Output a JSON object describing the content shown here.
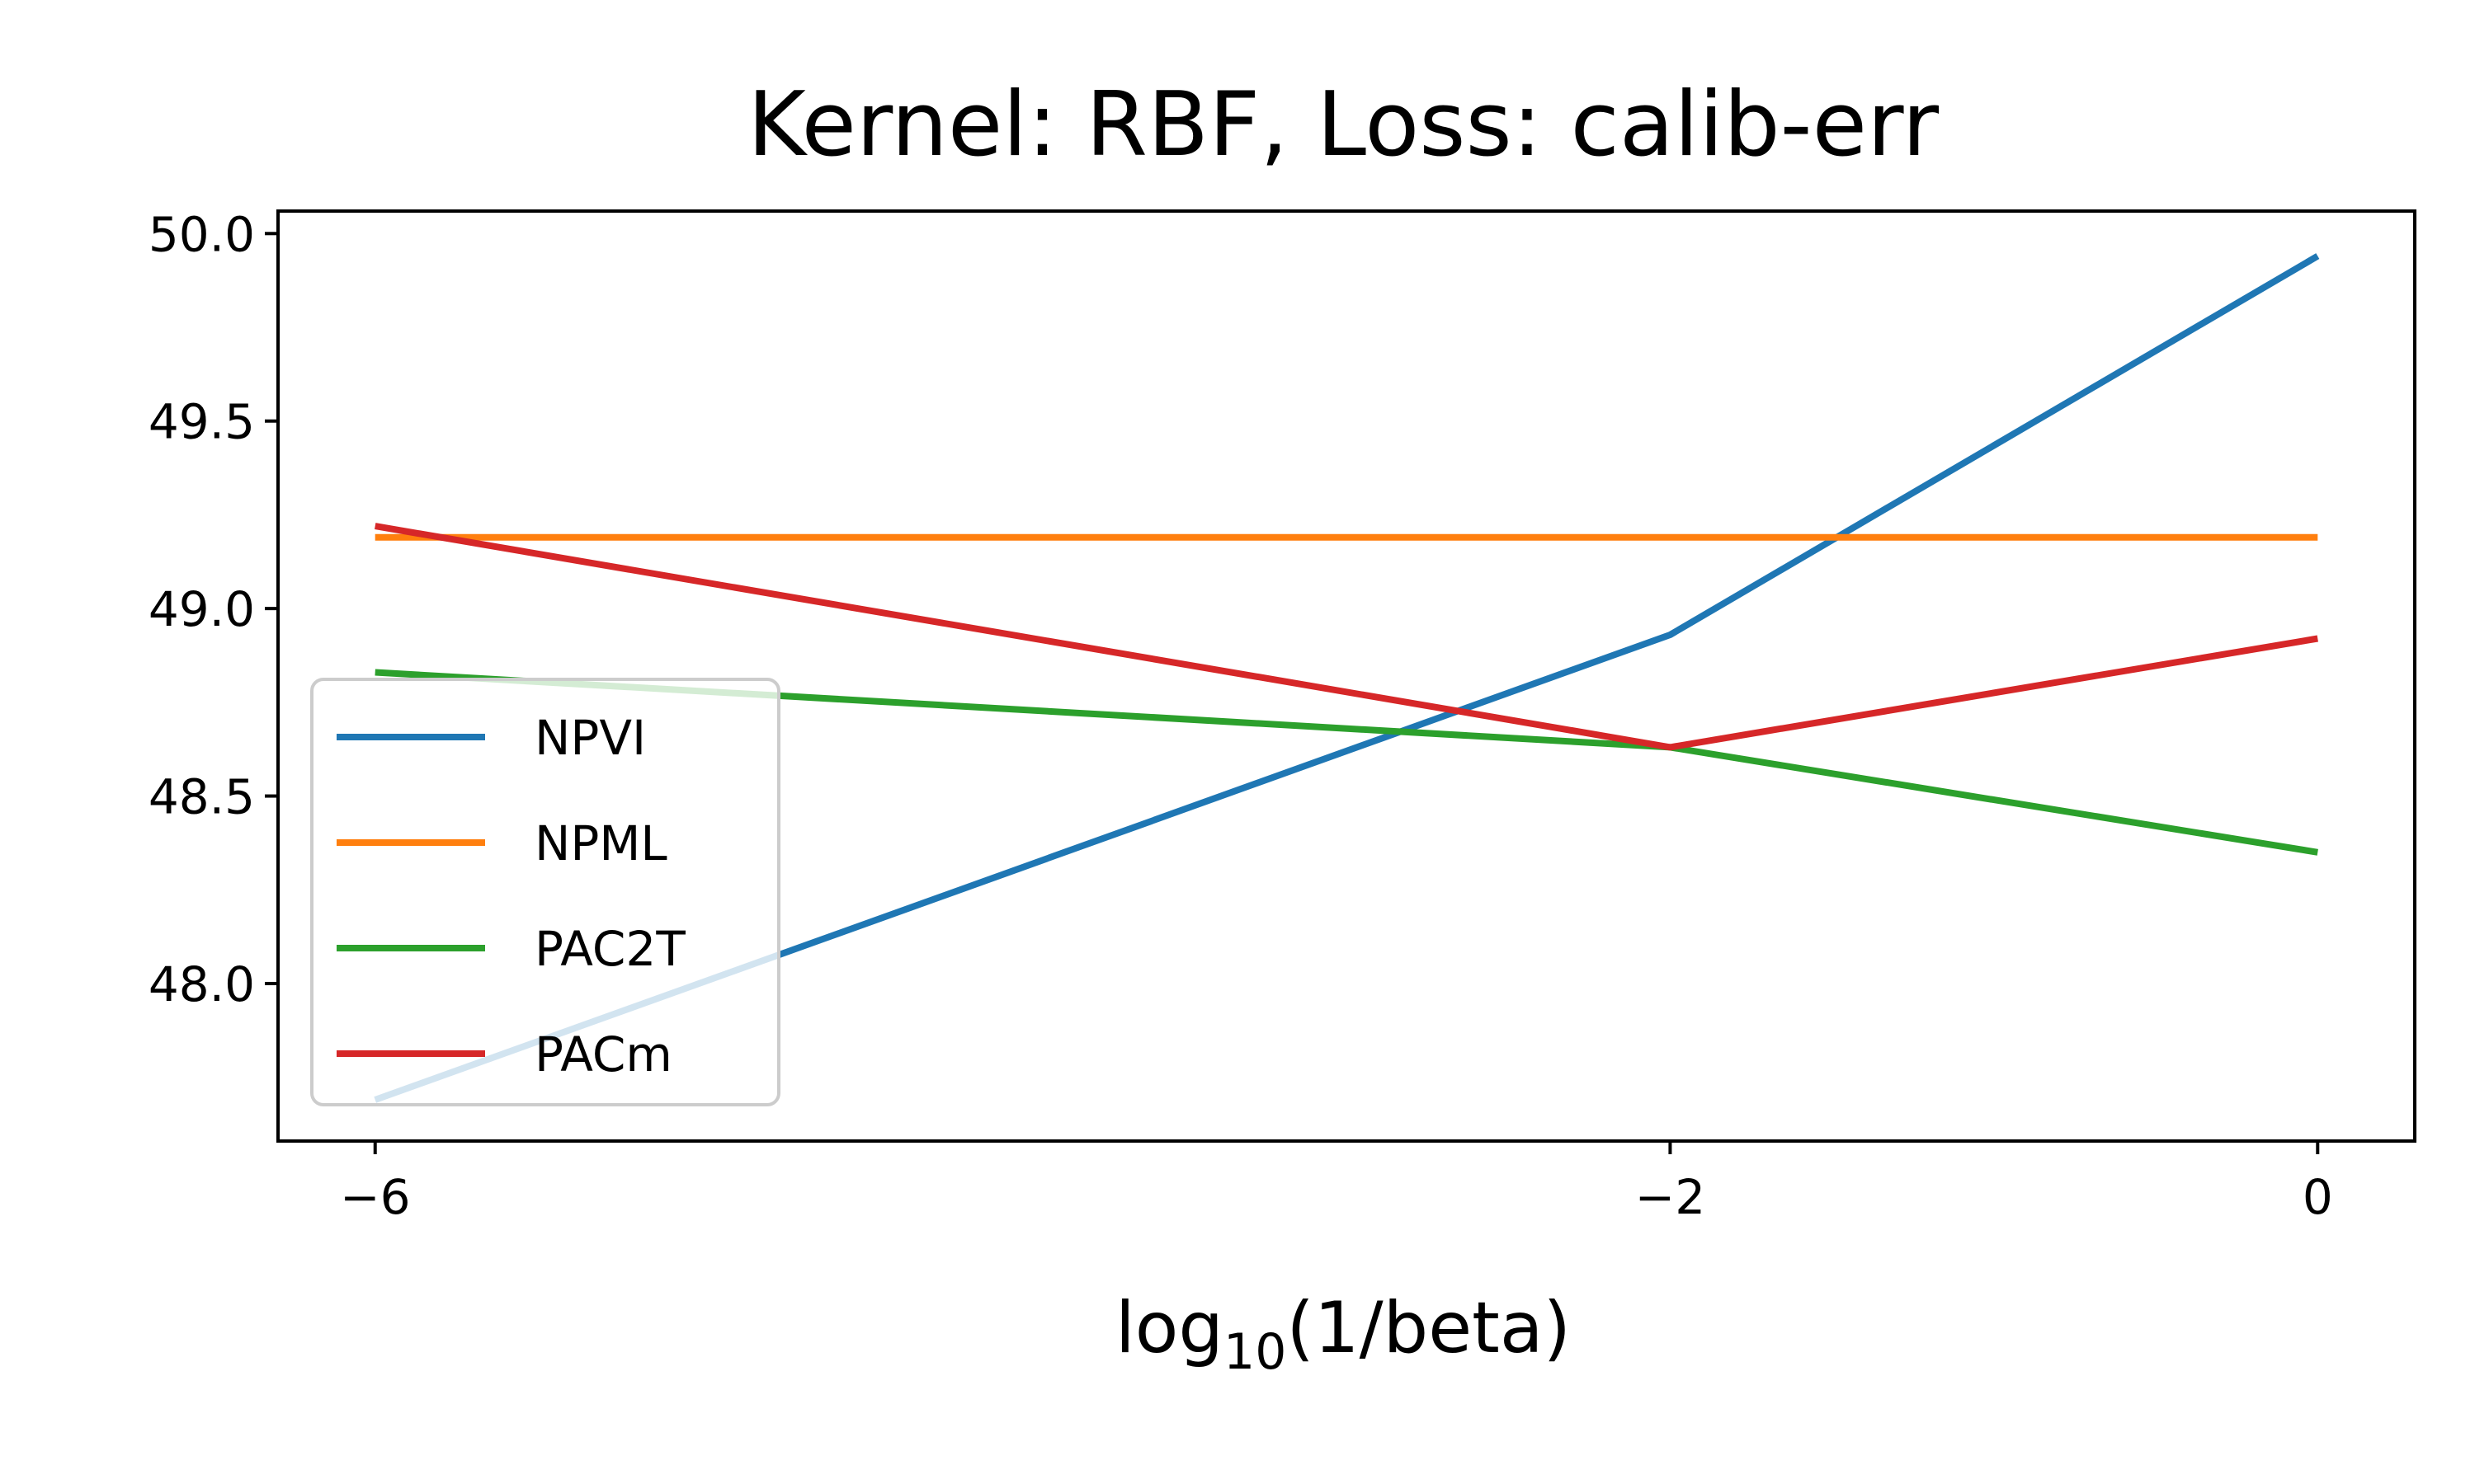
{
  "chart_data": {
    "type": "line",
    "title": "Kernel: RBF, Loss: calib-err",
    "xlabel": {
      "base": "log",
      "subscript": "10",
      "rest": "(1/beta)"
    },
    "ylabel": "",
    "x": [
      -6,
      -2,
      0
    ],
    "xticks": [
      -6,
      -2,
      0
    ],
    "xtick_labels": [
      "−6",
      "−2",
      "0"
    ],
    "yticks": [
      48.0,
      48.5,
      49.0,
      49.5,
      50.0
    ],
    "ytick_labels": [
      "48.0",
      "48.5",
      "49.0",
      "49.5",
      "50.0"
    ],
    "xlim": [
      -6.3,
      0.3
    ],
    "ylim": [
      47.58,
      50.06
    ],
    "grid": false,
    "legend_position": "lower-left",
    "series": [
      {
        "name": "NPVI",
        "color": "#1f77b4",
        "values": [
          47.69,
          48.93,
          49.94
        ]
      },
      {
        "name": "NPML",
        "color": "#ff7f0e",
        "values": [
          49.19,
          49.19,
          49.19
        ]
      },
      {
        "name": "PAC2T",
        "color": "#2ca02c",
        "values": [
          48.83,
          48.63,
          48.35
        ]
      },
      {
        "name": "PACm",
        "color": "#d62728",
        "values": [
          49.22,
          48.63,
          48.92
        ]
      }
    ]
  }
}
